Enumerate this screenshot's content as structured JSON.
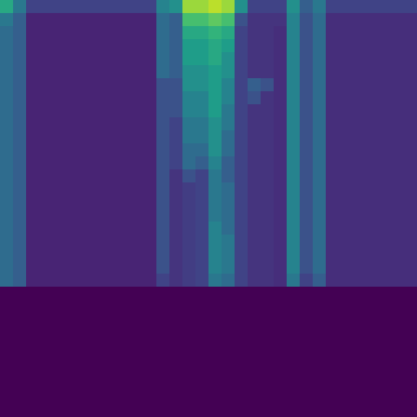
{
  "chart_data": {
    "type": "heatmap",
    "tick_labels": false,
    "zlim": [
      0,
      1
    ],
    "cells": [
      [
        0.6,
        0.4,
        0.2,
        0.2,
        0.2,
        0.2,
        0.2,
        0.2,
        0.2,
        0.2,
        0.2,
        0.2,
        0.45,
        0.5,
        0.85,
        0.85,
        0.9,
        0.85,
        0.5,
        0.2,
        0.2,
        0.2,
        0.5,
        0.3,
        0.4,
        0.2,
        0.2,
        0.2,
        0.2,
        0.2,
        0.2,
        0.2
      ],
      [
        0.4,
        0.3,
        0.1,
        0.1,
        0.1,
        0.1,
        0.1,
        0.1,
        0.1,
        0.1,
        0.1,
        0.1,
        0.35,
        0.3,
        0.7,
        0.7,
        0.75,
        0.7,
        0.25,
        0.15,
        0.15,
        0.15,
        0.45,
        0.25,
        0.35,
        0.13,
        0.13,
        0.13,
        0.13,
        0.13,
        0.13,
        0.13
      ],
      [
        0.35,
        0.3,
        0.1,
        0.1,
        0.1,
        0.1,
        0.1,
        0.1,
        0.1,
        0.1,
        0.1,
        0.1,
        0.35,
        0.3,
        0.6,
        0.6,
        0.65,
        0.6,
        0.2,
        0.15,
        0.15,
        0.13,
        0.45,
        0.25,
        0.35,
        0.13,
        0.13,
        0.13,
        0.13,
        0.13,
        0.13,
        0.13
      ],
      [
        0.35,
        0.3,
        0.1,
        0.1,
        0.1,
        0.1,
        0.1,
        0.1,
        0.1,
        0.1,
        0.1,
        0.1,
        0.35,
        0.3,
        0.55,
        0.55,
        0.6,
        0.55,
        0.2,
        0.15,
        0.15,
        0.13,
        0.45,
        0.25,
        0.35,
        0.13,
        0.13,
        0.13,
        0.13,
        0.13,
        0.13,
        0.13
      ],
      [
        0.35,
        0.3,
        0.1,
        0.1,
        0.1,
        0.1,
        0.1,
        0.1,
        0.1,
        0.1,
        0.1,
        0.1,
        0.35,
        0.3,
        0.55,
        0.55,
        0.6,
        0.5,
        0.2,
        0.15,
        0.15,
        0.13,
        0.45,
        0.25,
        0.35,
        0.13,
        0.13,
        0.13,
        0.13,
        0.13,
        0.13,
        0.13
      ],
      [
        0.35,
        0.3,
        0.1,
        0.1,
        0.1,
        0.1,
        0.1,
        0.1,
        0.1,
        0.1,
        0.1,
        0.1,
        0.35,
        0.3,
        0.5,
        0.5,
        0.55,
        0.5,
        0.2,
        0.15,
        0.15,
        0.13,
        0.45,
        0.25,
        0.35,
        0.13,
        0.13,
        0.13,
        0.13,
        0.13,
        0.13,
        0.13
      ],
      [
        0.35,
        0.3,
        0.1,
        0.1,
        0.1,
        0.1,
        0.1,
        0.1,
        0.1,
        0.1,
        0.1,
        0.1,
        0.25,
        0.25,
        0.5,
        0.5,
        0.55,
        0.45,
        0.2,
        0.3,
        0.25,
        0.13,
        0.45,
        0.25,
        0.35,
        0.13,
        0.13,
        0.13,
        0.13,
        0.13,
        0.13,
        0.13
      ],
      [
        0.35,
        0.3,
        0.1,
        0.1,
        0.1,
        0.1,
        0.1,
        0.1,
        0.1,
        0.1,
        0.1,
        0.1,
        0.25,
        0.25,
        0.45,
        0.45,
        0.55,
        0.45,
        0.2,
        0.25,
        0.15,
        0.13,
        0.45,
        0.25,
        0.35,
        0.13,
        0.13,
        0.13,
        0.13,
        0.13,
        0.13,
        0.13
      ],
      [
        0.35,
        0.3,
        0.1,
        0.1,
        0.1,
        0.1,
        0.1,
        0.1,
        0.1,
        0.1,
        0.1,
        0.1,
        0.25,
        0.25,
        0.45,
        0.45,
        0.55,
        0.4,
        0.2,
        0.15,
        0.15,
        0.13,
        0.45,
        0.25,
        0.35,
        0.13,
        0.13,
        0.13,
        0.13,
        0.13,
        0.13,
        0.13
      ],
      [
        0.35,
        0.3,
        0.1,
        0.1,
        0.1,
        0.1,
        0.1,
        0.1,
        0.1,
        0.1,
        0.1,
        0.1,
        0.25,
        0.2,
        0.4,
        0.4,
        0.5,
        0.4,
        0.2,
        0.15,
        0.15,
        0.13,
        0.45,
        0.25,
        0.35,
        0.13,
        0.13,
        0.13,
        0.13,
        0.13,
        0.13,
        0.13
      ],
      [
        0.35,
        0.3,
        0.1,
        0.1,
        0.1,
        0.1,
        0.1,
        0.1,
        0.1,
        0.1,
        0.1,
        0.1,
        0.25,
        0.2,
        0.4,
        0.4,
        0.5,
        0.35,
        0.2,
        0.15,
        0.15,
        0.13,
        0.45,
        0.25,
        0.35,
        0.13,
        0.13,
        0.13,
        0.13,
        0.13,
        0.13,
        0.13
      ],
      [
        0.35,
        0.3,
        0.1,
        0.1,
        0.1,
        0.1,
        0.1,
        0.1,
        0.1,
        0.1,
        0.1,
        0.1,
        0.25,
        0.2,
        0.35,
        0.35,
        0.5,
        0.35,
        0.2,
        0.15,
        0.15,
        0.13,
        0.45,
        0.25,
        0.35,
        0.13,
        0.13,
        0.13,
        0.13,
        0.13,
        0.13,
        0.13
      ],
      [
        0.35,
        0.3,
        0.1,
        0.1,
        0.1,
        0.1,
        0.1,
        0.1,
        0.1,
        0.1,
        0.1,
        0.1,
        0.25,
        0.2,
        0.35,
        0.3,
        0.45,
        0.3,
        0.2,
        0.15,
        0.15,
        0.13,
        0.45,
        0.25,
        0.35,
        0.13,
        0.13,
        0.13,
        0.13,
        0.13,
        0.13,
        0.13
      ],
      [
        0.35,
        0.3,
        0.1,
        0.1,
        0.1,
        0.1,
        0.1,
        0.1,
        0.1,
        0.1,
        0.1,
        0.1,
        0.25,
        0.15,
        0.25,
        0.2,
        0.4,
        0.3,
        0.2,
        0.15,
        0.15,
        0.13,
        0.45,
        0.25,
        0.35,
        0.13,
        0.13,
        0.13,
        0.13,
        0.13,
        0.13,
        0.13
      ],
      [
        0.35,
        0.3,
        0.1,
        0.1,
        0.1,
        0.1,
        0.1,
        0.1,
        0.1,
        0.1,
        0.1,
        0.1,
        0.25,
        0.15,
        0.18,
        0.2,
        0.4,
        0.35,
        0.2,
        0.15,
        0.15,
        0.13,
        0.45,
        0.25,
        0.35,
        0.13,
        0.13,
        0.13,
        0.13,
        0.13,
        0.13,
        0.13
      ],
      [
        0.35,
        0.3,
        0.1,
        0.1,
        0.1,
        0.1,
        0.1,
        0.1,
        0.1,
        0.1,
        0.1,
        0.1,
        0.25,
        0.15,
        0.18,
        0.2,
        0.4,
        0.35,
        0.2,
        0.15,
        0.15,
        0.13,
        0.45,
        0.25,
        0.35,
        0.13,
        0.13,
        0.13,
        0.13,
        0.13,
        0.13,
        0.13
      ],
      [
        0.35,
        0.3,
        0.1,
        0.1,
        0.1,
        0.1,
        0.1,
        0.1,
        0.1,
        0.1,
        0.1,
        0.1,
        0.25,
        0.15,
        0.18,
        0.2,
        0.4,
        0.35,
        0.2,
        0.15,
        0.15,
        0.13,
        0.45,
        0.25,
        0.35,
        0.13,
        0.13,
        0.13,
        0.13,
        0.13,
        0.13,
        0.13
      ],
      [
        0.35,
        0.3,
        0.1,
        0.1,
        0.1,
        0.1,
        0.1,
        0.1,
        0.1,
        0.1,
        0.1,
        0.1,
        0.25,
        0.15,
        0.18,
        0.2,
        0.45,
        0.35,
        0.2,
        0.15,
        0.15,
        0.13,
        0.45,
        0.25,
        0.35,
        0.13,
        0.13,
        0.13,
        0.13,
        0.13,
        0.13,
        0.13
      ],
      [
        0.35,
        0.3,
        0.1,
        0.1,
        0.1,
        0.1,
        0.1,
        0.1,
        0.1,
        0.1,
        0.1,
        0.1,
        0.25,
        0.15,
        0.18,
        0.2,
        0.45,
        0.4,
        0.2,
        0.15,
        0.15,
        0.13,
        0.45,
        0.25,
        0.35,
        0.13,
        0.13,
        0.13,
        0.13,
        0.13,
        0.13,
        0.13
      ],
      [
        0.35,
        0.3,
        0.1,
        0.1,
        0.1,
        0.1,
        0.1,
        0.1,
        0.1,
        0.1,
        0.1,
        0.1,
        0.25,
        0.15,
        0.18,
        0.2,
        0.45,
        0.4,
        0.2,
        0.15,
        0.15,
        0.13,
        0.45,
        0.25,
        0.35,
        0.13,
        0.13,
        0.13,
        0.13,
        0.13,
        0.13,
        0.13
      ],
      [
        0.35,
        0.3,
        0.1,
        0.1,
        0.1,
        0.1,
        0.1,
        0.1,
        0.1,
        0.1,
        0.1,
        0.1,
        0.25,
        0.15,
        0.18,
        0.2,
        0.45,
        0.4,
        0.2,
        0.15,
        0.15,
        0.13,
        0.45,
        0.25,
        0.35,
        0.13,
        0.13,
        0.13,
        0.13,
        0.13,
        0.13,
        0.13
      ],
      [
        0.35,
        0.3,
        0.1,
        0.1,
        0.1,
        0.1,
        0.1,
        0.1,
        0.1,
        0.1,
        0.1,
        0.1,
        0.2,
        0.15,
        0.18,
        0.2,
        0.4,
        0.35,
        0.2,
        0.15,
        0.15,
        0.13,
        0.4,
        0.2,
        0.3,
        0.13,
        0.13,
        0.13,
        0.13,
        0.13,
        0.13,
        0.13
      ],
      [
        0,
        0,
        0,
        0,
        0,
        0,
        0,
        0,
        0,
        0,
        0,
        0,
        0,
        0,
        0,
        0,
        0,
        0,
        0,
        0,
        0,
        0,
        0,
        0,
        0,
        0,
        0,
        0,
        0,
        0,
        0,
        0
      ],
      [
        0,
        0,
        0,
        0,
        0,
        0,
        0,
        0,
        0,
        0,
        0,
        0,
        0,
        0,
        0,
        0,
        0,
        0,
        0,
        0,
        0,
        0,
        0,
        0,
        0,
        0,
        0,
        0,
        0,
        0,
        0,
        0
      ],
      [
        0,
        0,
        0,
        0,
        0,
        0,
        0,
        0,
        0,
        0,
        0,
        0,
        0,
        0,
        0,
        0,
        0,
        0,
        0,
        0,
        0,
        0,
        0,
        0,
        0,
        0,
        0,
        0,
        0,
        0,
        0,
        0
      ],
      [
        0,
        0,
        0,
        0,
        0,
        0,
        0,
        0,
        0,
        0,
        0,
        0,
        0,
        0,
        0,
        0,
        0,
        0,
        0,
        0,
        0,
        0,
        0,
        0,
        0,
        0,
        0,
        0,
        0,
        0,
        0,
        0
      ],
      [
        0,
        0,
        0,
        0,
        0,
        0,
        0,
        0,
        0,
        0,
        0,
        0,
        0,
        0,
        0,
        0,
        0,
        0,
        0,
        0,
        0,
        0,
        0,
        0,
        0,
        0,
        0,
        0,
        0,
        0,
        0,
        0
      ],
      [
        0,
        0,
        0,
        0,
        0,
        0,
        0,
        0,
        0,
        0,
        0,
        0,
        0,
        0,
        0,
        0,
        0,
        0,
        0,
        0,
        0,
        0,
        0,
        0,
        0,
        0,
        0,
        0,
        0,
        0,
        0,
        0
      ],
      [
        0,
        0,
        0,
        0,
        0,
        0,
        0,
        0,
        0,
        0,
        0,
        0,
        0,
        0,
        0,
        0,
        0,
        0,
        0,
        0,
        0,
        0,
        0,
        0,
        0,
        0,
        0,
        0,
        0,
        0,
        0,
        0
      ],
      [
        0,
        0,
        0,
        0,
        0,
        0,
        0,
        0,
        0,
        0,
        0,
        0,
        0,
        0,
        0,
        0,
        0,
        0,
        0,
        0,
        0,
        0,
        0,
        0,
        0,
        0,
        0,
        0,
        0,
        0,
        0,
        0
      ],
      [
        0,
        0,
        0,
        0,
        0,
        0,
        0,
        0,
        0,
        0,
        0,
        0,
        0,
        0,
        0,
        0,
        0,
        0,
        0,
        0,
        0,
        0,
        0,
        0,
        0,
        0,
        0,
        0,
        0,
        0,
        0,
        0
      ],
      [
        0,
        0,
        0,
        0,
        0,
        0,
        0,
        0,
        0,
        0,
        0,
        0,
        0,
        0,
        0,
        0,
        0,
        0,
        0,
        0,
        0,
        0,
        0,
        0,
        0,
        0,
        0,
        0,
        0,
        0,
        0,
        0
      ]
    ]
  }
}
